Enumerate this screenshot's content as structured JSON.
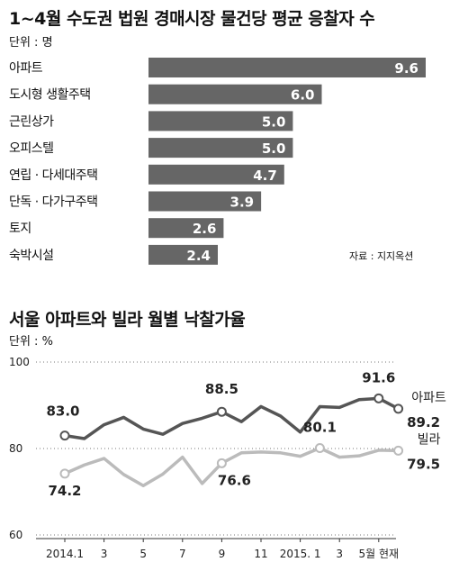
{
  "chart_data": [
    {
      "type": "bar",
      "title": "1~4월 수도권 법원 경매시장 물건당 평균 응찰자 수",
      "unit": "단위 : 명",
      "source": "자료 : 지지옥션",
      "categories": [
        "아파트",
        "도시형 생활주택",
        "근린상가",
        "오피스텔",
        "연립 · 다세대주택",
        "단독 · 다가구주택",
        "토지",
        "숙박시설"
      ],
      "values": [
        9.6,
        6.0,
        5.0,
        5.0,
        4.7,
        3.9,
        2.6,
        2.4
      ],
      "value_labels": [
        "9.6",
        "6.0",
        "5.0",
        "5.0",
        "4.7",
        "3.9",
        "2.6",
        "2.4"
      ],
      "orientation": "horizontal",
      "xlim": [
        0,
        9.6
      ],
      "bar_color": "#666666"
    },
    {
      "type": "line",
      "title": "서울 아파트와 빌라 월별 낙찰가율",
      "unit": "단위 : %",
      "ylim": [
        60,
        100
      ],
      "y_ticks": [
        "100",
        "80",
        "60"
      ],
      "grid": "dotted at 100, 80, 60",
      "x_tick_labels": [
        "2014.1",
        "3",
        "5",
        "7",
        "9",
        "11",
        "2015. 1",
        "3",
        "5월 현재"
      ],
      "x_tick_index": [
        0,
        2,
        4,
        6,
        8,
        10,
        12,
        14,
        16
      ],
      "series": [
        {
          "name": "아파트",
          "color": "#555555",
          "values": [
            83.0,
            82.3,
            85.5,
            87.2,
            84.5,
            83.3,
            85.8,
            87.0,
            88.5,
            86.2,
            89.7,
            87.5,
            83.8,
            89.7,
            89.5,
            91.3,
            91.6,
            89.2
          ],
          "labels": [
            {
              "index": 0,
              "text": "83.0"
            },
            {
              "index": 8,
              "text": "88.5"
            },
            {
              "index": 16,
              "text": "91.6"
            },
            {
              "index": 17,
              "text": "89.2"
            }
          ]
        },
        {
          "name": "빌라",
          "color": "#bbbbbb",
          "values": [
            74.2,
            76.2,
            77.7,
            74.0,
            71.4,
            74.1,
            78.0,
            71.9,
            76.6,
            79.0,
            79.2,
            79.0,
            78.2,
            80.1,
            78.0,
            78.3,
            79.6,
            79.5
          ],
          "labels": [
            {
              "index": 0,
              "text": "74.2"
            },
            {
              "index": 8,
              "text": "76.6"
            },
            {
              "index": 13,
              "text": "80.1"
            },
            {
              "index": 17,
              "text": "79.5"
            }
          ]
        }
      ]
    }
  ]
}
